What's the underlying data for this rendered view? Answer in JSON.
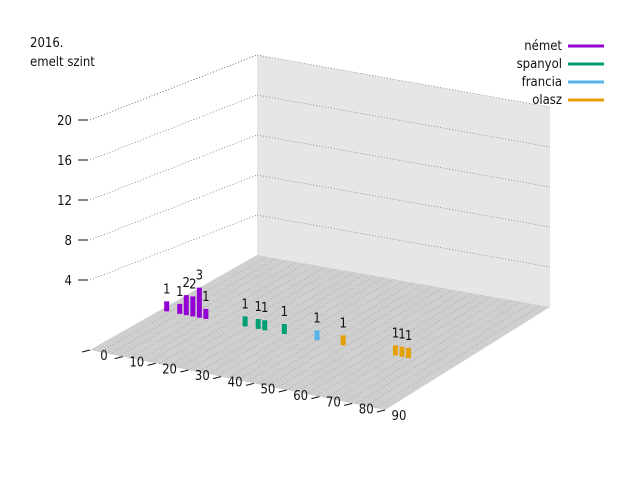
{
  "chart_data": {
    "type": "3d-bar",
    "title_lines": [
      "2016.",
      "emelt szint"
    ],
    "xlabel": "",
    "ylabel": "",
    "zlabel": "",
    "x_ticks": [
      "0",
      "10",
      "20",
      "30",
      "40",
      "50",
      "60",
      "70",
      "80",
      "90"
    ],
    "z_ticks": [
      "4",
      "8",
      "12",
      "20"
    ],
    "z_tick_values": [
      4,
      8,
      12,
      20
    ],
    "z_extra_tick_values": [
      16
    ],
    "z_extra_tick_labels": [
      "16"
    ],
    "zlim": [
      0,
      24
    ],
    "xlim": [
      0,
      90
    ],
    "grid": true,
    "legend_position": "top-right",
    "series": [
      {
        "name": "német",
        "color": "#9400d3",
        "points": [
          {
            "x": 2,
            "value": 1,
            "label": "1"
          },
          {
            "x": 6,
            "value": 1,
            "label": "1"
          },
          {
            "x": 8,
            "value": 2,
            "label": "2"
          },
          {
            "x": 10,
            "value": 2,
            "label": "2"
          },
          {
            "x": 12,
            "value": 3,
            "label": "3"
          },
          {
            "x": 14,
            "value": 1,
            "label": "1"
          }
        ]
      },
      {
        "name": "spanyol",
        "color": "#009e73",
        "points": [
          {
            "x": 26,
            "value": 1,
            "label": "1"
          },
          {
            "x": 30,
            "value": 1,
            "label": "1"
          },
          {
            "x": 32,
            "value": 1,
            "label": "1"
          },
          {
            "x": 38,
            "value": 1,
            "label": "1"
          }
        ]
      },
      {
        "name": "francia",
        "color": "#56b4e9",
        "points": [
          {
            "x": 48,
            "value": 1,
            "label": "1"
          }
        ]
      },
      {
        "name": "olasz",
        "color": "#e69f00",
        "points": [
          {
            "x": 56,
            "value": 1,
            "label": "1"
          },
          {
            "x": 72,
            "value": 1,
            "label": "1"
          },
          {
            "x": 74,
            "value": 1,
            "label": "1"
          },
          {
            "x": 76,
            "value": 1,
            "label": "1"
          }
        ]
      }
    ]
  }
}
